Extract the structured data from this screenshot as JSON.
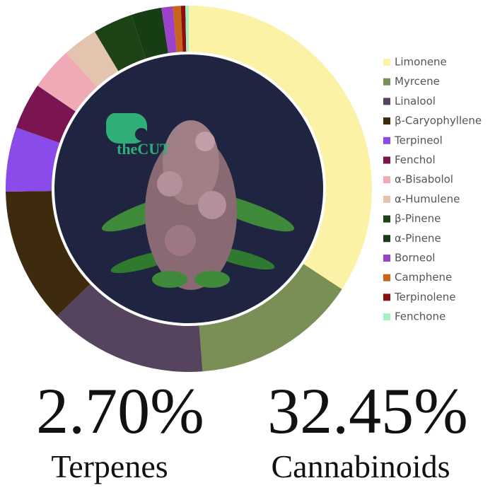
{
  "chart_data": {
    "type": "donut",
    "categories": [
      "Limonene",
      "Myrcene",
      "Linalool",
      "β-Caryophyllene",
      "Terpineol",
      "Fenchol",
      "α-Bisabolol",
      "α-Humulene",
      "β-Pinene",
      "α-Pinene",
      "Borneol",
      "Camphene",
      "Terpinolene",
      "Fenchone"
    ],
    "values": [
      34.3,
      14.6,
      14,
      12,
      5.7,
      4.1,
      3.8,
      3.1,
      3.5,
      2.7,
      1.0,
      0.7,
      0.4,
      0.3
    ],
    "colors": [
      "#fbf2a5",
      "#7a8f55",
      "#56445f",
      "#3e2a0c",
      "#8b4bea",
      "#7a1552",
      "#f0aab5",
      "#e3c4ae",
      "#1c4216",
      "#173d14",
      "#9b43c9",
      "#c8651a",
      "#8a1010",
      "#a8f0c8"
    ],
    "legend": "right"
  },
  "logo": "theCUT",
  "stats": [
    {
      "value": "2.70%",
      "label": "Terpenes"
    },
    {
      "value": "32.45%",
      "label": "Cannabinoids"
    }
  ]
}
